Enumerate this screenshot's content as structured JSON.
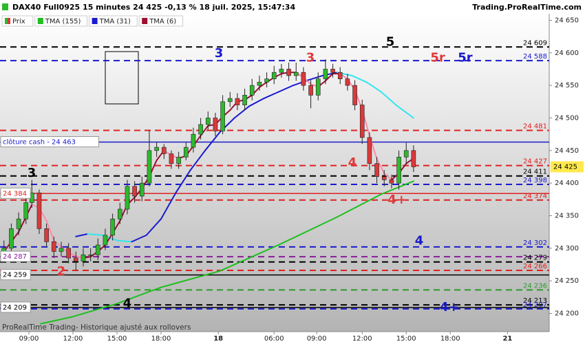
{
  "chart_data": {
    "type": "candlestick",
    "title": "DAX40 Full0925 15 minutes 24 425 -0,13 % 18 juil. 2025, 15:47:34",
    "source": "Trading.ProRealTime.com",
    "footnote": "ProRealTime Trading- Historique ajusté aux rollovers",
    "xlim": [
      7.03,
      44.44
    ],
    "xticks": [
      {
        "value": 9,
        "label": "09:00"
      },
      {
        "value": 12,
        "label": "12:00"
      },
      {
        "value": 15,
        "label": "15:00"
      },
      {
        "value": 18,
        "label": "18:00"
      },
      {
        "value": 21.9,
        "label": "18"
      },
      {
        "value": 25.7,
        "label": "06:00"
      },
      {
        "value": 28.6,
        "label": "09:00"
      },
      {
        "value": 31.7,
        "label": "12:00"
      },
      {
        "value": 34.7,
        "label": "15:00"
      },
      {
        "value": 37.7,
        "label": "18:00"
      },
      {
        "value": 41.6,
        "label": "21"
      }
    ],
    "ylim": [
      24172,
      24660
    ],
    "yticks": [
      {
        "value": 24650,
        "label": "24 650"
      },
      {
        "value": 24600,
        "label": "24 600"
      },
      {
        "value": 24550,
        "label": "24 550"
      },
      {
        "value": 24500,
        "label": "24 500"
      },
      {
        "value": 24450,
        "label": "24 450"
      },
      {
        "value": 24400,
        "label": "24 400"
      },
      {
        "value": 24350,
        "label": "24 350"
      },
      {
        "value": 24300,
        "label": "24 300"
      },
      {
        "value": 24250,
        "label": "24 250"
      },
      {
        "value": 24200,
        "label": "24 200"
      }
    ],
    "candles": {
      "name": "Prix",
      "up_color": "#2eb82e",
      "down_color": "#d93a3a",
      "x": [
        7.3,
        7.8,
        8.3,
        8.8,
        9.2,
        9.7,
        10.2,
        10.7,
        11.2,
        11.7,
        12.2,
        12.7,
        13.2,
        13.7,
        14.2,
        14.7,
        15.2,
        15.7,
        16.2,
        16.7,
        17.2,
        17.7,
        18.2,
        18.7,
        19.2,
        19.7,
        20.2,
        20.7,
        21.2,
        21.7,
        22.2,
        22.7,
        23.2,
        23.7,
        24.2,
        24.7,
        25.2,
        25.7,
        26.2,
        26.7,
        27.2,
        27.7,
        28.2,
        28.7,
        29.2,
        29.7,
        30.2,
        30.7,
        31.2,
        31.7,
        32.2,
        32.7,
        33.2,
        33.7,
        34.2,
        34.7,
        35.2
      ],
      "open": [
        24290,
        24300,
        24330,
        24345,
        24370,
        24385,
        24330,
        24310,
        24295,
        24300,
        24285,
        24280,
        24290,
        24290,
        24305,
        24320,
        24345,
        24360,
        24395,
        24380,
        24400,
        24450,
        24455,
        24445,
        24430,
        24440,
        24455,
        24475,
        24490,
        24500,
        24480,
        24525,
        24530,
        24520,
        24535,
        24550,
        24555,
        24560,
        24570,
        24575,
        24565,
        24570,
        24550,
        24535,
        24560,
        24575,
        24570,
        24560,
        24550,
        24520,
        24470,
        24430,
        24410,
        24405,
        24400,
        24440,
        24450
      ],
      "high": [
        24312,
        24338,
        24355,
        24380,
        24405,
        24390,
        24338,
        24318,
        24310,
        24308,
        24295,
        24300,
        24300,
        24315,
        24330,
        24353,
        24370,
        24405,
        24403,
        24410,
        24481,
        24463,
        24460,
        24450,
        24448,
        24463,
        24485,
        24500,
        24510,
        24508,
        24535,
        24540,
        24538,
        24545,
        24560,
        24565,
        24570,
        24580,
        24583,
        24585,
        24585,
        24578,
        24558,
        24570,
        24590,
        24583,
        24578,
        24568,
        24558,
        24528,
        24478,
        24440,
        24420,
        24413,
        24450,
        24462,
        24458
      ],
      "low": [
        24280,
        24292,
        24320,
        24337,
        24362,
        24322,
        24302,
        24285,
        24287,
        24277,
        24266,
        24272,
        24280,
        24282,
        24297,
        24312,
        24337,
        24352,
        24370,
        24372,
        24395,
        24440,
        24437,
        24422,
        24422,
        24435,
        24447,
        24467,
        24482,
        24472,
        24475,
        24517,
        24512,
        24512,
        24527,
        24542,
        24547,
        24552,
        24562,
        24557,
        24557,
        24542,
        24515,
        24527,
        24552,
        24562,
        24552,
        24542,
        24512,
        24460,
        24420,
        24400,
        24395,
        24392,
        24390,
        24430,
        24417
      ],
      "close": [
        24300,
        24330,
        24345,
        24370,
        24385,
        24330,
        24310,
        24295,
        24300,
        24285,
        24280,
        24290,
        24290,
        24305,
        24320,
        24345,
        24360,
        24395,
        24380,
        24400,
        24450,
        24455,
        24445,
        24430,
        24440,
        24455,
        24475,
        24490,
        24500,
        24480,
        24525,
        24530,
        24520,
        24535,
        24550,
        24555,
        24560,
        24570,
        24575,
        24565,
        24570,
        24550,
        24535,
        24560,
        24575,
        24570,
        24560,
        24550,
        24520,
        24470,
        24430,
        24410,
        24405,
        24400,
        24440,
        24450,
        24425
      ]
    },
    "series": [
      {
        "name": "TMA (155)",
        "color": "#1fbf1f",
        "down_color": "#1fbf1f",
        "x": [
          9.8,
          12,
          15,
          18,
          22,
          26,
          30,
          33,
          35.2
        ],
        "values": [
          24184,
          24195,
          24215,
          24240,
          24265,
          24305,
          24348,
          24383,
          24403
        ]
      },
      {
        "name": "TMA (31)",
        "color": "#1a1ad0",
        "down_color": "#33e6f0",
        "x": [
          12.2,
          13,
          14,
          15,
          16,
          17,
          18,
          19,
          20,
          21,
          22,
          23,
          24,
          25,
          26,
          27,
          28,
          29,
          30,
          31,
          32,
          33,
          34,
          35.2
        ],
        "values": [
          24318,
          24322,
          24320,
          24312,
          24310,
          24320,
          24345,
          24385,
          24420,
          24450,
          24478,
          24500,
          24518,
          24530,
          24540,
          24550,
          24558,
          24565,
          24570,
          24565,
          24555,
          24540,
          24520,
          24500
        ]
      },
      {
        "name": "TMA (6)",
        "color": "#9a1030",
        "down_color": "#ff8aa8",
        "x": [
          7.3,
          7.8,
          8.3,
          8.8,
          9.2,
          9.7,
          10.2,
          10.7,
          11.2,
          11.7,
          12.2,
          12.7,
          13.2,
          13.7,
          14.2,
          14.7,
          15.2,
          15.7,
          16.2,
          16.7,
          17.2,
          17.7,
          18.2,
          18.7,
          19.2,
          19.7,
          20.2,
          20.7,
          21.2,
          21.7,
          22.2,
          22.7,
          23.2,
          23.7,
          24.2,
          24.7,
          25.2,
          25.7,
          26.2,
          26.7,
          27.2,
          27.7,
          28.2,
          28.7,
          29.2,
          29.7,
          30.2,
          30.7,
          31.2,
          31.7,
          32.2,
          32.7,
          33.2,
          33.7,
          34.2,
          34.7,
          35.2
        ],
        "values": [
          24295,
          24310,
          24325,
          24348,
          24367,
          24362,
          24342,
          24312,
          24302,
          24293,
          24288,
          24285,
          24287,
          24295,
          24305,
          24323,
          24342,
          24367,
          24378,
          24392,
          24410,
          24435,
          24450,
          24443,
          24438,
          24442,
          24457,
          24473,
          24488,
          24490,
          24502,
          24512,
          24525,
          24528,
          24535,
          24547,
          24555,
          24562,
          24568,
          24570,
          24570,
          24562,
          24552,
          24548,
          24557,
          24568,
          24568,
          24560,
          24543,
          24513,
          24473,
          24437,
          24415,
          24405,
          24415,
          24430,
          24438
        ]
      }
    ],
    "levels": [
      {
        "value": 24609,
        "label": "24 609",
        "color": "#000000",
        "style": "dashed",
        "side": "right"
      },
      {
        "value": 24588,
        "label": "24 588",
        "color": "#1a1acc",
        "style": "dashed",
        "side": "right"
      },
      {
        "value": 24481,
        "label": "24 481",
        "color": "#e02020",
        "style": "dashed",
        "side": "right"
      },
      {
        "value": 24463,
        "label": "clôture cash -  24 463",
        "color": "#1a1acc",
        "style": "solid",
        "side": "left"
      },
      {
        "value": 24427,
        "label": "24 427",
        "color": "#e02020",
        "style": "dashed",
        "side": "right"
      },
      {
        "value": 24411,
        "label": "24 411",
        "color": "#000000",
        "style": "dashed",
        "side": "right"
      },
      {
        "value": 24398,
        "label": "24 398",
        "color": "#1a1acc",
        "style": "dashed",
        "side": "right"
      },
      {
        "value": 24384,
        "label": "24 384",
        "color": "#e02020",
        "style": "solid",
        "side": "left"
      },
      {
        "value": 24374,
        "label": "24 374",
        "color": "#e02020",
        "style": "dashed",
        "side": "right"
      },
      {
        "value": 24302,
        "label": "24 302",
        "color": "#1a1acc",
        "style": "dashed",
        "side": "right"
      },
      {
        "value": 24287,
        "label": "24 287",
        "color": "#8a1a9a",
        "style": "dashed",
        "side": "left"
      },
      {
        "value": 24279,
        "label": "24 279",
        "color": "#000000",
        "style": "dashed",
        "side": "right"
      },
      {
        "value": 24266,
        "label": "24 266",
        "color": "#e02020",
        "style": "dashed",
        "side": "right"
      },
      {
        "value": 24259,
        "label": "24 259",
        "color": "#000000",
        "style": "solid",
        "side": "left"
      },
      {
        "value": 24236,
        "label": "24 236",
        "color": "#2a9a2a",
        "style": "dashed",
        "side": "right"
      },
      {
        "value": 24213,
        "label": "24 213",
        "color": "#000000",
        "style": "dashed",
        "side": "right"
      },
      {
        "value": 24209,
        "label": "24 209",
        "color": "#000000",
        "style": "solid",
        "side": "left"
      },
      {
        "value": 24207,
        "label": "24 207",
        "color": "#1a1acc",
        "style": "dashed",
        "side": "right"
      }
    ],
    "annotations": [
      {
        "text": "3",
        "color": "#1a1acc",
        "x": 21.94,
        "y": 24599
      },
      {
        "text": "3",
        "color": "#e03a3a",
        "x": 28.17,
        "y": 24592
      },
      {
        "text": "5",
        "color": "#000000",
        "x": 33.61,
        "y": 24616
      },
      {
        "text": "5r",
        "color": "#e03a3a",
        "x": 36.85,
        "y": 24592
      },
      {
        "text": "5r",
        "color": "#1a1acc",
        "x": 38.72,
        "y": 24592
      },
      {
        "text": "3",
        "color": "#000000",
        "x": 9.19,
        "y": 24415
      },
      {
        "text": "2",
        "color": "#e03a3a",
        "x": 11.2,
        "y": 24264
      },
      {
        "text": "4",
        "color": "#000000",
        "x": 15.7,
        "y": 24215
      },
      {
        "text": "4",
        "color": "#e03a3a",
        "x": 31.03,
        "y": 24431
      },
      {
        "text": "4+",
        "color": "#e03a3a",
        "x": 34.08,
        "y": 24374
      },
      {
        "text": "4",
        "color": "#1a1acc",
        "x": 35.58,
        "y": 24311
      },
      {
        "text": "4+",
        "color": "#1a1acc",
        "x": 37.64,
        "y": 24209
      }
    ],
    "last_price": {
      "value": 24425,
      "label": "24 425",
      "color": "#ffe94d"
    }
  }
}
